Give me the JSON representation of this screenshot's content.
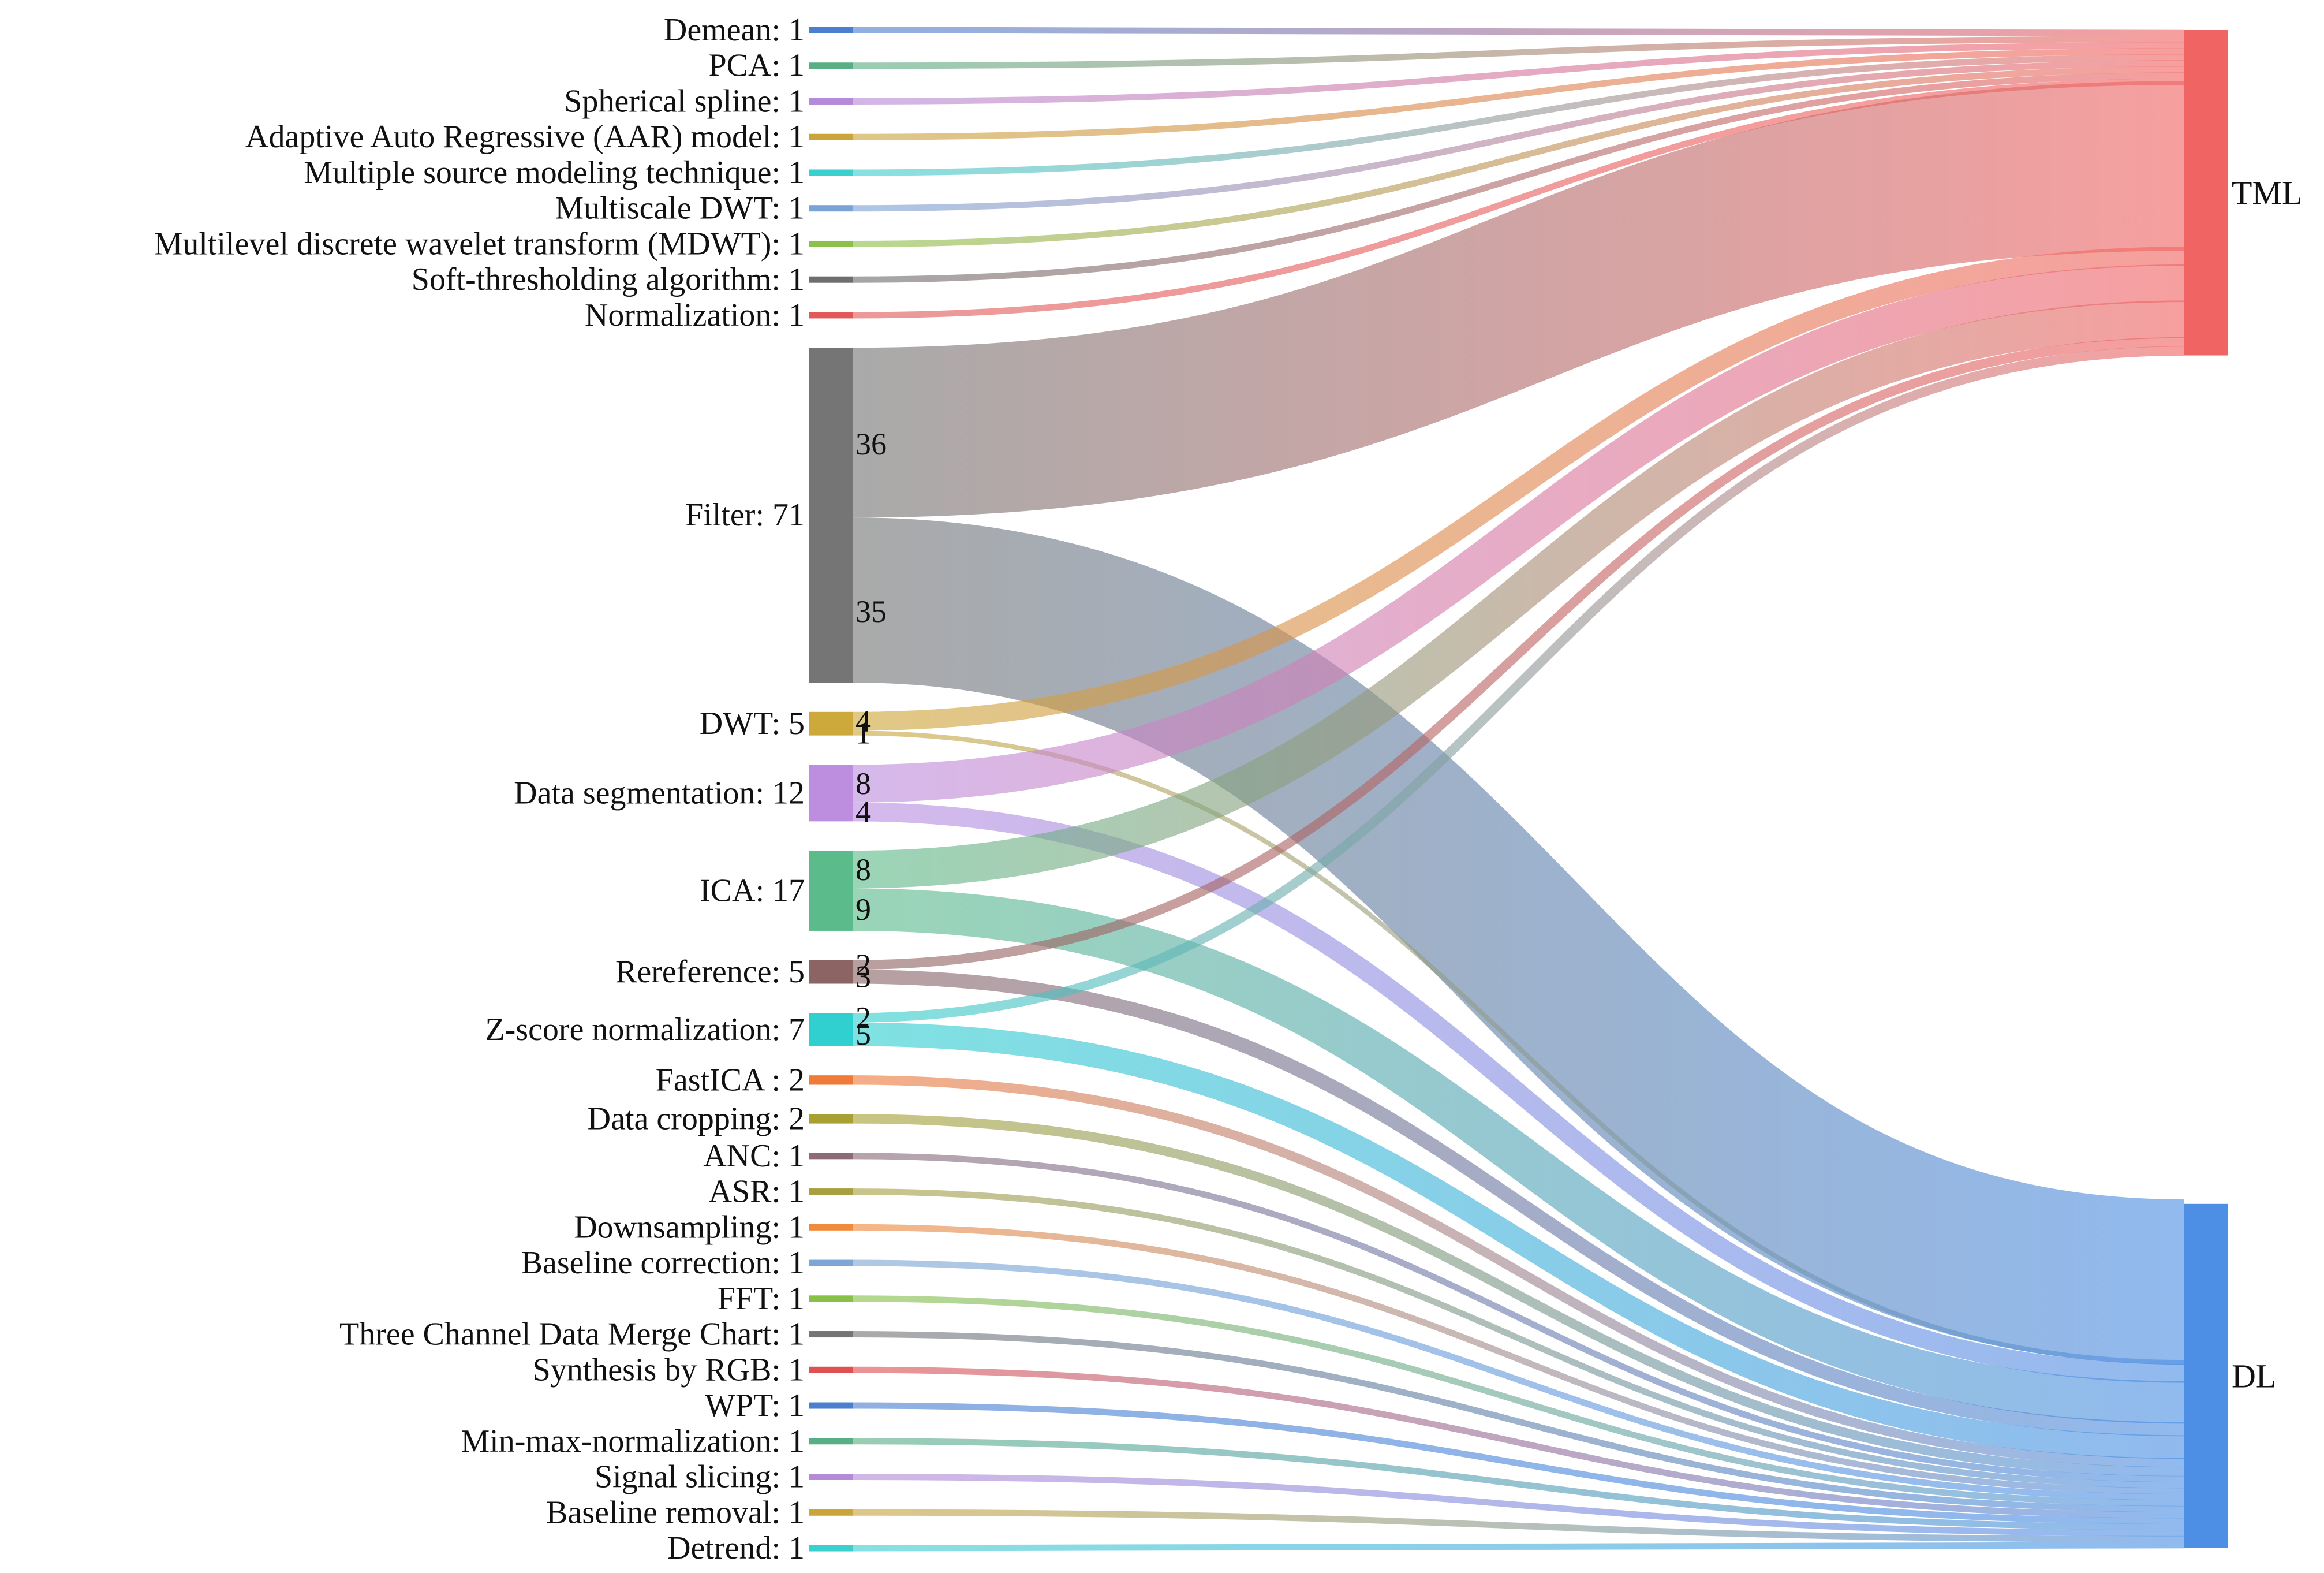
{
  "chart_data": {
    "type": "sankey",
    "targets": [
      {
        "name": "TML",
        "color": "#f16464"
      },
      {
        "name": "DL",
        "color": "#4d8fe4"
      }
    ],
    "sources": [
      {
        "name": "Demean",
        "label": "Demean: 1",
        "color": "#4a7fcf",
        "flows": [
          {
            "target": "TML",
            "value": 1
          }
        ]
      },
      {
        "name": "PCA",
        "label": "PCA: 1",
        "color": "#5aae86",
        "flows": [
          {
            "target": "TML",
            "value": 1
          }
        ]
      },
      {
        "name": "Spherical spline",
        "label": "Spherical spline: 1",
        "color": "#b58ad6",
        "flows": [
          {
            "target": "TML",
            "value": 1
          }
        ]
      },
      {
        "name": "Adaptive Auto Regressive (AAR) model",
        "label": "Adaptive Auto Regressive (AAR) model: 1",
        "color": "#c9a53a",
        "flows": [
          {
            "target": "TML",
            "value": 1
          }
        ]
      },
      {
        "name": "Multiple source modeling technique",
        "label": "Multiple source modeling technique: 1",
        "color": "#3ccfd0",
        "flows": [
          {
            "target": "TML",
            "value": 1
          }
        ]
      },
      {
        "name": "Multiscale DWT",
        "label": "Multiscale DWT: 1",
        "color": "#7aa3d6",
        "flows": [
          {
            "target": "TML",
            "value": 1
          }
        ]
      },
      {
        "name": "Multilevel discrete wavelet transform (MDWT)",
        "label": "Multilevel discrete wavelet transform (MDWT): 1",
        "color": "#8cc04a",
        "flows": [
          {
            "target": "TML",
            "value": 1
          }
        ]
      },
      {
        "name": "Soft-thresholding algorithm",
        "label": "Soft-thresholding algorithm: 1",
        "color": "#6e6e6e",
        "flows": [
          {
            "target": "TML",
            "value": 1
          }
        ]
      },
      {
        "name": "Normalization",
        "label": "Normalization: 1",
        "color": "#e05a5a",
        "flows": [
          {
            "target": "TML",
            "value": 1
          }
        ]
      },
      {
        "name": "Filter",
        "label": "Filter: 71",
        "color": "#757575",
        "flows": [
          {
            "target": "TML",
            "value": 36,
            "label": "36"
          },
          {
            "target": "DL",
            "value": 35,
            "label": "35"
          }
        ]
      },
      {
        "name": "DWT",
        "label": "DWT: 5",
        "color": "#cda83a",
        "flows": [
          {
            "target": "TML",
            "value": 4,
            "label": "4"
          },
          {
            "target": "DL",
            "value": 1,
            "label": "1"
          }
        ]
      },
      {
        "name": "Data segmentation",
        "label": "Data segmentation: 12",
        "color": "#bd8ee0",
        "flows": [
          {
            "target": "TML",
            "value": 8,
            "label": "8"
          },
          {
            "target": "DL",
            "value": 4,
            "label": "4"
          }
        ]
      },
      {
        "name": "ICA",
        "label": "ICA: 17",
        "color": "#5cbb8a",
        "flows": [
          {
            "target": "TML",
            "value": 8,
            "label": "8"
          },
          {
            "target": "DL",
            "value": 9,
            "label": "9"
          }
        ]
      },
      {
        "name": "Rereference",
        "label": "Rereference: 5",
        "color": "#8c6464",
        "flows": [
          {
            "target": "TML",
            "value": 2,
            "label": "2"
          },
          {
            "target": "DL",
            "value": 3,
            "label": "3"
          }
        ]
      },
      {
        "name": "Z-score normalization",
        "label": "Z-score normalization: 7",
        "color": "#30d0d0",
        "flows": [
          {
            "target": "TML",
            "value": 2,
            "label": "2"
          },
          {
            "target": "DL",
            "value": 5,
            "label": "5"
          }
        ]
      },
      {
        "name": "FastICA",
        "label": "FastICA : 2",
        "color": "#f07a3a",
        "flows": [
          {
            "target": "DL",
            "value": 2
          }
        ]
      },
      {
        "name": "Data cropping",
        "label": "Data cropping: 2",
        "color": "#a8a032",
        "flows": [
          {
            "target": "DL",
            "value": 2
          }
        ]
      },
      {
        "name": "ANC",
        "label": "ANC: 1",
        "color": "#8c6a78",
        "flows": [
          {
            "target": "DL",
            "value": 1
          }
        ]
      },
      {
        "name": "ASR",
        "label": "ASR: 1",
        "color": "#a8a040",
        "flows": [
          {
            "target": "DL",
            "value": 1
          }
        ]
      },
      {
        "name": "Downsampling",
        "label": "Downsampling: 1",
        "color": "#f08a3c",
        "flows": [
          {
            "target": "DL",
            "value": 1
          }
        ]
      },
      {
        "name": "Baseline correction",
        "label": "Baseline correction: 1",
        "color": "#7ea6d4",
        "flows": [
          {
            "target": "DL",
            "value": 1
          }
        ]
      },
      {
        "name": "FFT",
        "label": "FFT: 1",
        "color": "#88c048",
        "flows": [
          {
            "target": "DL",
            "value": 1
          }
        ]
      },
      {
        "name": "Three Channel Data Merge Chart",
        "label": "Three Channel Data Merge Chart: 1",
        "color": "#757575",
        "flows": [
          {
            "target": "DL",
            "value": 1
          }
        ]
      },
      {
        "name": "Synthesis by RGB",
        "label": "Synthesis by RGB: 1",
        "color": "#e05050",
        "flows": [
          {
            "target": "DL",
            "value": 1
          }
        ]
      },
      {
        "name": "WPT",
        "label": "WPT: 1",
        "color": "#4a7fcf",
        "flows": [
          {
            "target": "DL",
            "value": 1
          }
        ]
      },
      {
        "name": "Min-max-normalization",
        "label": "Min-max-normalization: 1",
        "color": "#5aae86",
        "flows": [
          {
            "target": "DL",
            "value": 1
          }
        ]
      },
      {
        "name": "Signal slicing",
        "label": "Signal slicing: 1",
        "color": "#b58ad6",
        "flows": [
          {
            "target": "DL",
            "value": 1
          }
        ]
      },
      {
        "name": "Baseline removal",
        "label": "Baseline removal: 1",
        "color": "#c9a53a",
        "flows": [
          {
            "target": "DL",
            "value": 1
          }
        ]
      },
      {
        "name": "Detrend",
        "label": "Detrend: 1",
        "color": "#3ccfd0",
        "flows": [
          {
            "target": "DL",
            "value": 1
          }
        ]
      }
    ]
  }
}
